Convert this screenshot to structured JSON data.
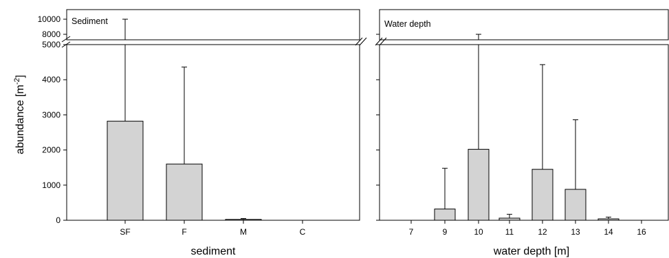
{
  "chart_data": [
    {
      "type": "bar",
      "panel_label": "Sediment",
      "xlabel": "sediment",
      "ylabel": "abundance [m",
      "ylabel_sup": "-2",
      "ylabel_close": "]",
      "categories": [
        "SF",
        "F",
        "M",
        "C"
      ],
      "values": [
        2820,
        1600,
        25,
        0
      ],
      "error_upper": [
        10000,
        4360,
        50,
        0
      ],
      "y_ticks": [
        "0",
        "1000",
        "2000",
        "3000",
        "4000",
        "5000",
        "8000",
        "10000"
      ],
      "y_axis_break": [
        5000,
        8000
      ],
      "ylim": [
        0,
        10300
      ]
    },
    {
      "type": "bar",
      "panel_label": "Water depth",
      "xlabel": "water depth [m]",
      "categories": [
        "7",
        "9",
        "10",
        "11",
        "12",
        "13",
        "14",
        "16"
      ],
      "values": [
        0,
        320,
        2020,
        60,
        1450,
        880,
        40,
        0
      ],
      "error_upper": [
        0,
        1480,
        8000,
        170,
        4430,
        2860,
        90,
        0
      ],
      "y_axis_break": [
        5000,
        8000
      ]
    }
  ]
}
